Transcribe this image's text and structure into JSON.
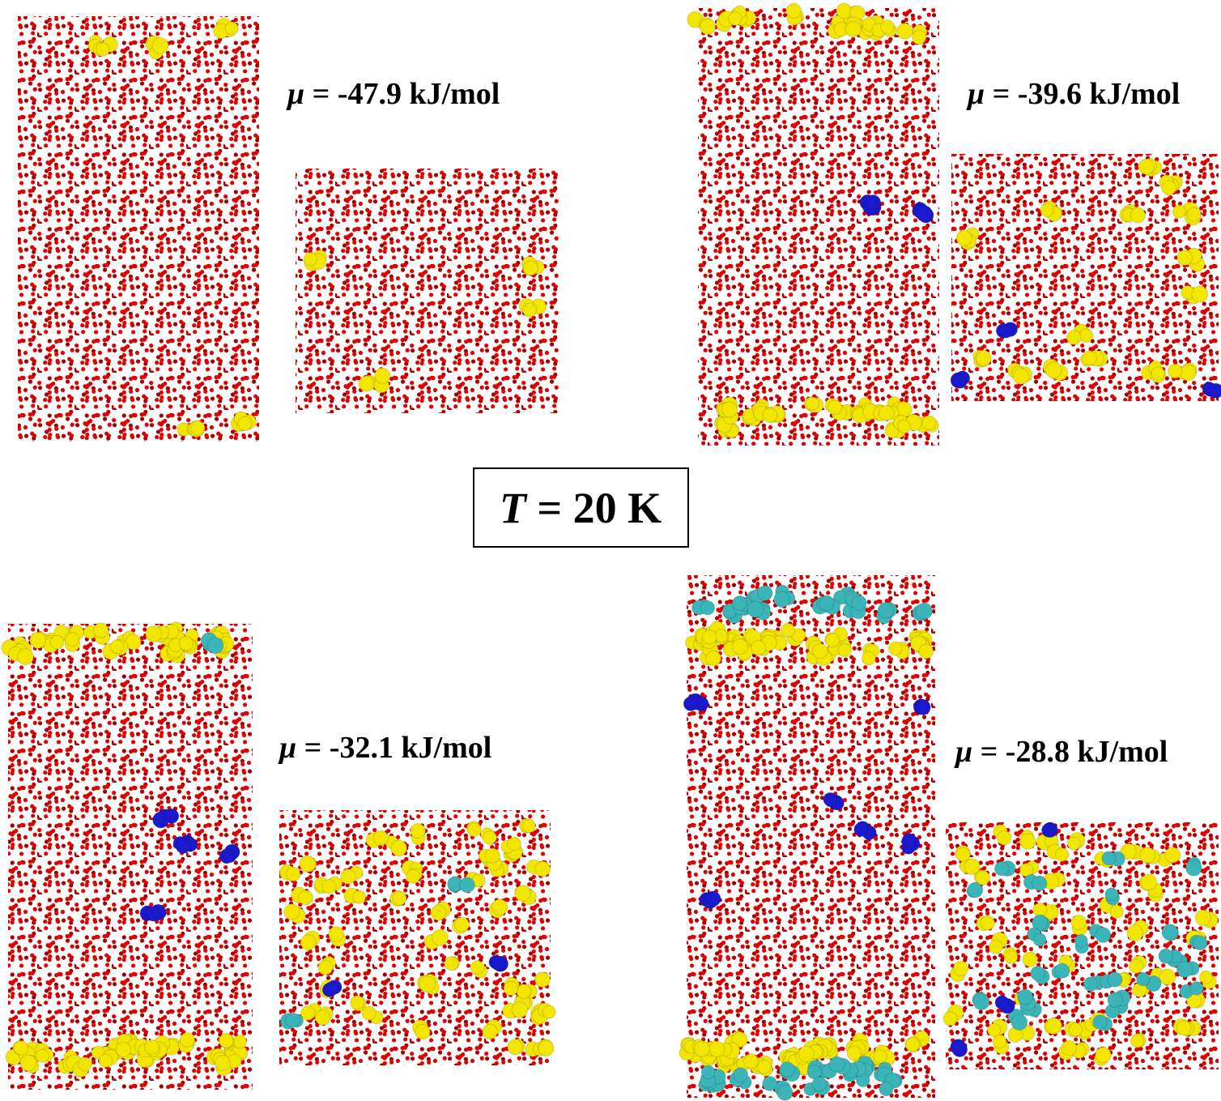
{
  "panels": [
    {
      "label": {
        "symbol": "μ",
        "text": "= -47.9 kJ/mol"
      }
    },
    {
      "label": {
        "symbol": "μ",
        "text": "= -39.6 kJ/mol"
      }
    },
    {
      "label": {
        "symbol": "μ",
        "text": "= -32.1 kJ/mol"
      }
    },
    {
      "label": {
        "symbol": "μ",
        "text": "= -28.8 kJ/mol"
      }
    }
  ],
  "center_box": {
    "symbol": "T",
    "text": "= 20 K"
  }
}
